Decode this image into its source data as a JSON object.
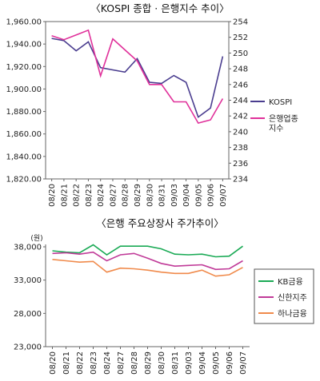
{
  "chart_data": [
    {
      "type": "line",
      "title": "〈KOSPI 종합 · 은행지수 추이〉",
      "categories": [
        "08/20",
        "08/21",
        "08/22",
        "08/23",
        "08/24",
        "08/27",
        "08/28",
        "08/29",
        "08/30",
        "08/31",
        "09/03",
        "09/04",
        "09/05",
        "09/06",
        "09/07"
      ],
      "ylim": [
        1820,
        1960
      ],
      "y_ticks": [
        "1,820.00",
        "1,840.00",
        "1,860.00",
        "1,880.00",
        "1,900.00",
        "1,920.00",
        "1,940.00",
        "1,960.00"
      ],
      "y2lim": [
        234,
        254
      ],
      "y2_ticks": [
        "234",
        "236",
        "238",
        "240",
        "242",
        "244",
        "246",
        "248",
        "250",
        "252",
        "254"
      ],
      "legend_position": "right",
      "series": [
        {
          "name": "KOSPI",
          "axis": "left",
          "color": "#4a3d8f",
          "values": [
            1945,
            1943,
            1934,
            1942,
            1919,
            1917,
            1915,
            1927,
            1906,
            1905,
            1912,
            1906,
            1875,
            1883,
            1929
          ]
        },
        {
          "name": "은행업종 지수",
          "name_lines": [
            "은행업종",
            "지수"
          ],
          "axis": "right",
          "color": "#e0309a",
          "values": [
            252.2,
            251.7,
            252.3,
            252.9,
            247.1,
            251.8,
            250.4,
            249.0,
            246.0,
            246.0,
            243.8,
            243.8,
            241.1,
            241.5,
            244.2
          ]
        }
      ]
    },
    {
      "type": "line",
      "title": "〈은행 주요상장사 주가추이〉",
      "ylabel": "(원)",
      "categories": [
        "08/20",
        "08/21",
        "08/22",
        "08/23",
        "08/24",
        "08/27",
        "08/28",
        "08/29",
        "08/30",
        "08/31",
        "09/03",
        "09/04",
        "09/05",
        "09/06",
        "09/07"
      ],
      "ylim": [
        23000,
        38000
      ],
      "y_ticks": [
        "23,000",
        "28,000",
        "33,000",
        "38,000"
      ],
      "legend_position": "right",
      "series": [
        {
          "name": "KB금융",
          "color": "#1aaa55",
          "values": [
            37400,
            37200,
            37100,
            38300,
            36800,
            38100,
            38100,
            38100,
            37700,
            36900,
            36800,
            36900,
            36500,
            36600,
            38100
          ]
        },
        {
          "name": "신한지주",
          "color": "#c03a98",
          "values": [
            37000,
            37100,
            36900,
            37200,
            35900,
            36800,
            37000,
            36300,
            35500,
            35100,
            35200,
            35300,
            34600,
            34700,
            35900
          ]
        },
        {
          "name": "하나금융",
          "color": "#f08a4b",
          "values": [
            36100,
            35900,
            35700,
            35800,
            34200,
            34800,
            34700,
            34500,
            34200,
            34000,
            34000,
            34500,
            33600,
            33800,
            34900
          ]
        }
      ]
    }
  ]
}
